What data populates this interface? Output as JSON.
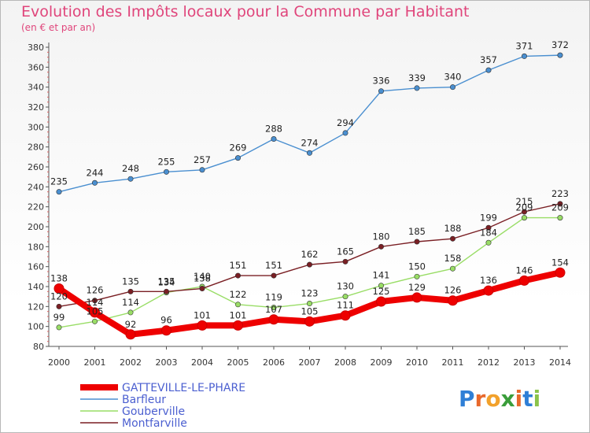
{
  "title": "Evolution des Impôts locaux pour la Commune par Habitant",
  "subtitle": "(en € et par an)",
  "logo_text": [
    "P",
    "r",
    "o",
    "x",
    "i",
    "t",
    "i"
  ],
  "logo_colors": [
    "#2f7fd6",
    "#e8692c",
    "#f2a12b",
    "#3a9d3a",
    "#e8692c",
    "#2f7fd6",
    "#8bc34a"
  ],
  "chart_data": {
    "type": "line",
    "x": [
      "2000",
      "2001",
      "2002",
      "2003",
      "2004",
      "2005",
      "2006",
      "2007",
      "2008",
      "2009",
      "2010",
      "2011",
      "2012",
      "2013",
      "2014"
    ],
    "ylim": [
      80,
      380
    ],
    "yticks": [
      80,
      100,
      120,
      140,
      160,
      180,
      200,
      220,
      240,
      260,
      280,
      300,
      320,
      340,
      360,
      380
    ],
    "grid": false,
    "legend_position": "bottom-left",
    "series": [
      {
        "name": "GATTEVILLE-LE-PHARE",
        "color": "#ee0000",
        "values": [
          138,
          114,
          92,
          96,
          101,
          101,
          107,
          105,
          111,
          125,
          129,
          126,
          136,
          146,
          154
        ]
      },
      {
        "name": "Barfleur",
        "color": "#4a8fd0",
        "values": [
          235,
          244,
          248,
          255,
          257,
          269,
          288,
          274,
          294,
          336,
          339,
          340,
          357,
          371,
          372
        ]
      },
      {
        "name": "Gouberville",
        "color": "#99dd66",
        "values": [
          99,
          105,
          114,
          134,
          140,
          122,
          119,
          123,
          130,
          141,
          150,
          158,
          184,
          209,
          209
        ]
      },
      {
        "name": "Montfarville",
        "color": "#7a1f24",
        "values": [
          120,
          126,
          135,
          135,
          138,
          151,
          151,
          162,
          165,
          180,
          185,
          188,
          199,
          215,
          223
        ]
      }
    ]
  }
}
